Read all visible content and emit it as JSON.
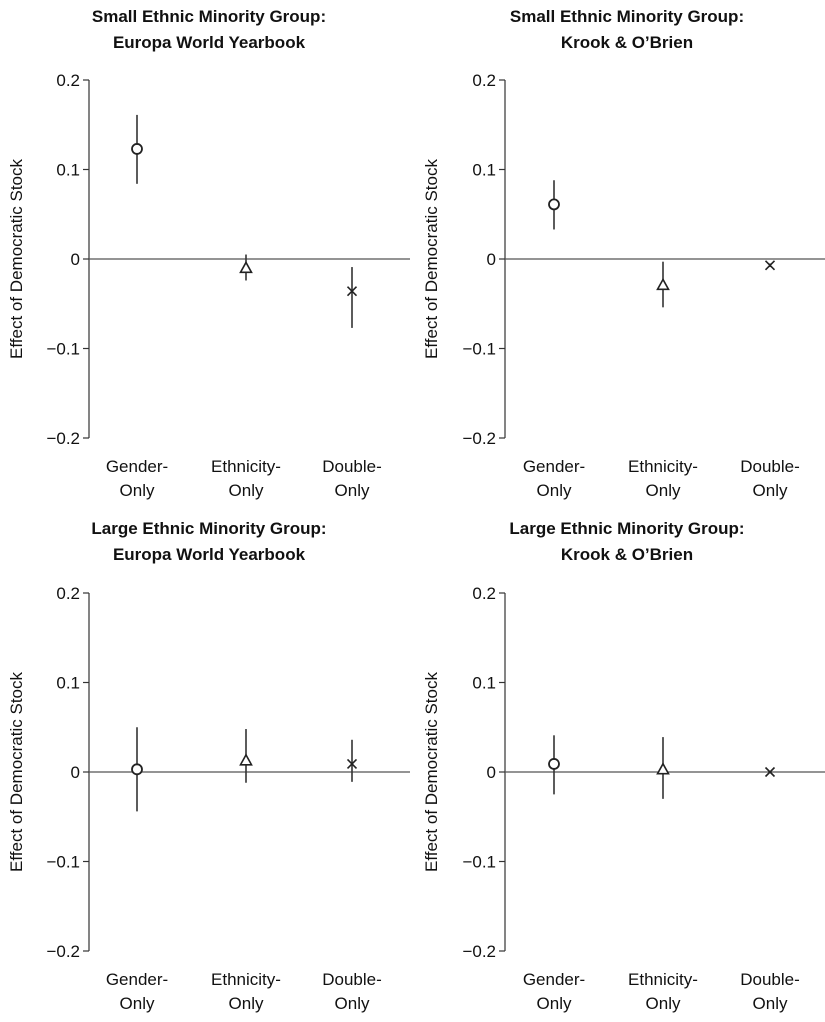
{
  "chart_data": [
    {
      "type": "scatter",
      "title_lines": [
        "Small Ethnic Minority Group:",
        "Europa World Yearbook"
      ],
      "ylabel": "Effect of Democratic Stock",
      "ylim": [
        -0.2,
        0.2
      ],
      "yticks": [
        0.2,
        0.1,
        0,
        -0.1,
        -0.2
      ],
      "ytick_labels": [
        "0.2",
        "0.1",
        "0",
        "−0.1",
        "−0.2"
      ],
      "categories": [
        [
          "Gender-",
          "Only"
        ],
        [
          "Ethnicity-",
          "Only"
        ],
        [
          "Double-",
          "Only"
        ]
      ],
      "points": [
        {
          "marker": "circle",
          "y": 0.123,
          "lo": 0.084,
          "hi": 0.161
        },
        {
          "marker": "triangle",
          "y": -0.01,
          "lo": -0.024,
          "hi": 0.005
        },
        {
          "marker": "x",
          "y": -0.036,
          "lo": -0.077,
          "hi": -0.009
        }
      ]
    },
    {
      "type": "scatter",
      "title_lines": [
        "Small Ethnic Minority Group:",
        "Krook & O’Brien"
      ],
      "ylabel": "Effect of Democratic Stock",
      "ylim": [
        -0.2,
        0.2
      ],
      "yticks": [
        0.2,
        0.1,
        0,
        -0.1,
        -0.2
      ],
      "ytick_labels": [
        "0.2",
        "0.1",
        "0",
        "−0.1",
        "−0.2"
      ],
      "categories": [
        [
          "Gender-",
          "Only"
        ],
        [
          "Ethnicity-",
          "Only"
        ],
        [
          "Double-",
          "Only"
        ]
      ],
      "points": [
        {
          "marker": "circle",
          "y": 0.061,
          "lo": 0.033,
          "hi": 0.088
        },
        {
          "marker": "triangle",
          "y": -0.029,
          "lo": -0.054,
          "hi": -0.003
        },
        {
          "marker": "x",
          "y": -0.007,
          "lo": -0.009,
          "hi": -0.005
        }
      ]
    },
    {
      "type": "scatter",
      "title_lines": [
        "Large Ethnic Minority Group:",
        "Europa World Yearbook"
      ],
      "ylabel": "Effect of Democratic Stock",
      "ylim": [
        -0.2,
        0.2
      ],
      "yticks": [
        0.2,
        0.1,
        0,
        -0.1,
        -0.2
      ],
      "ytick_labels": [
        "0.2",
        "0.1",
        "0",
        "−0.1",
        "−0.2"
      ],
      "categories": [
        [
          "Gender-",
          "Only"
        ],
        [
          "Ethnicity-",
          "Only"
        ],
        [
          "Double-",
          "Only"
        ]
      ],
      "points": [
        {
          "marker": "circle",
          "y": 0.003,
          "lo": -0.044,
          "hi": 0.05
        },
        {
          "marker": "triangle",
          "y": 0.013,
          "lo": -0.012,
          "hi": 0.048
        },
        {
          "marker": "x",
          "y": 0.009,
          "lo": -0.011,
          "hi": 0.036
        }
      ]
    },
    {
      "type": "scatter",
      "title_lines": [
        "Large Ethnic Minority Group:",
        "Krook & O’Brien"
      ],
      "ylabel": "Effect of Democratic Stock",
      "ylim": [
        -0.2,
        0.2
      ],
      "yticks": [
        0.2,
        0.1,
        0,
        -0.1,
        -0.2
      ],
      "ytick_labels": [
        "0.2",
        "0.1",
        "0",
        "−0.1",
        "−0.2"
      ],
      "categories": [
        [
          "Gender-",
          "Only"
        ],
        [
          "Ethnicity-",
          "Only"
        ],
        [
          "Double-",
          "Only"
        ]
      ],
      "points": [
        {
          "marker": "circle",
          "y": 0.009,
          "lo": -0.025,
          "hi": 0.041
        },
        {
          "marker": "triangle",
          "y": 0.003,
          "lo": -0.03,
          "hi": 0.039
        },
        {
          "marker": "x",
          "y": 0.0,
          "lo": -0.001,
          "hi": 0.001
        }
      ]
    }
  ]
}
